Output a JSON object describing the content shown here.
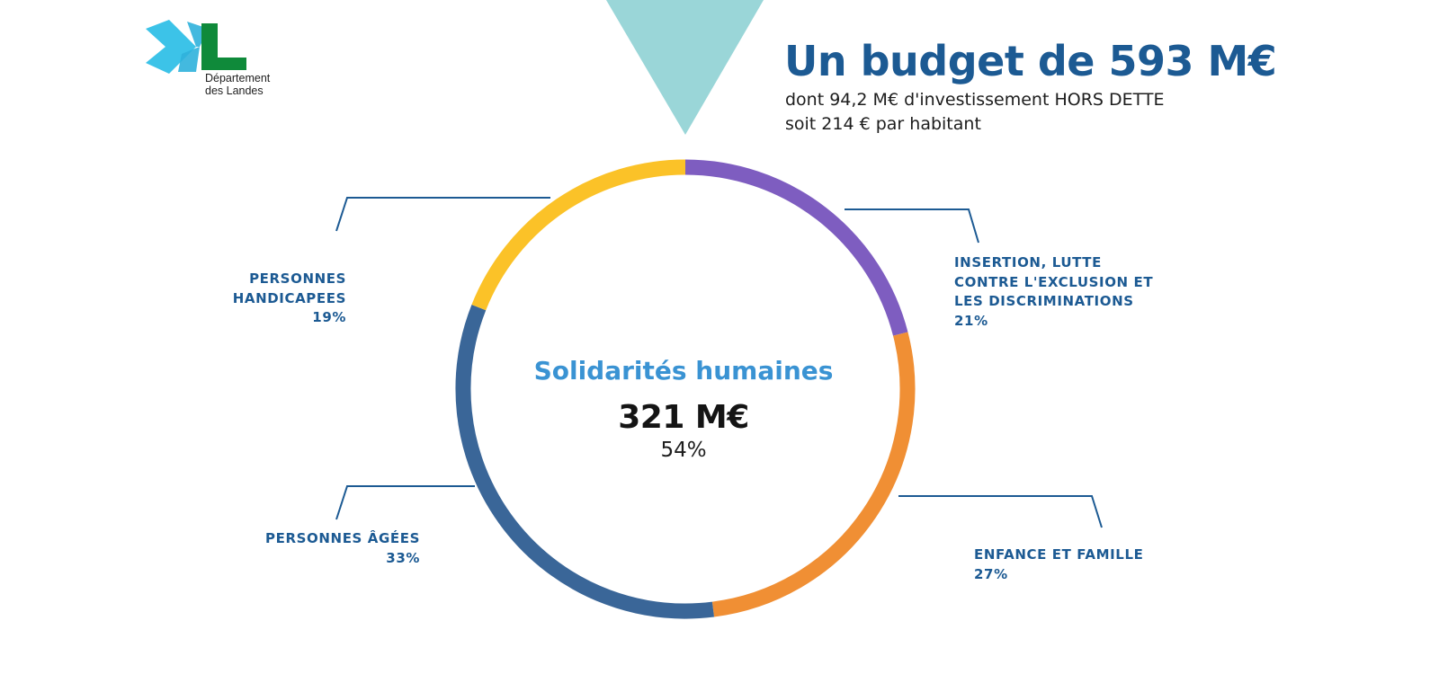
{
  "logo": {
    "line1": "Département",
    "line2": "des Landes",
    "colors": {
      "x": "#3cc3e8",
      "l": "#0f8a3a"
    }
  },
  "header": {
    "title": "Un budget de 593 M€",
    "subtitle_line1": "dont 94,2 M€ d'investissement HORS DETTE",
    "subtitle_line2": "soit 214 € par habitant"
  },
  "accent_triangle_color": "#9ad6d8",
  "chart_data": {
    "type": "pie",
    "style": "donut",
    "center": {
      "title": "Solidarités humaines",
      "value": "321 M€",
      "percent": "54%"
    },
    "slices": [
      {
        "label_lines": [
          "INSERTION, LUTTE",
          "CONTRE L'EXCLUSION ET",
          "LES DISCRIMINATIONS"
        ],
        "percent_label": "21%",
        "value": 21,
        "color": "#7e5dc0"
      },
      {
        "label_lines": [
          "ENFANCE ET FAMILLE"
        ],
        "percent_label": "27%",
        "value": 27,
        "color": "#f08f34"
      },
      {
        "label_lines": [
          "PERSONNES ÂGÉES"
        ],
        "percent_label": "33%",
        "value": 33,
        "color": "#3a6698"
      },
      {
        "label_lines": [
          "PERSONNES",
          "HANDICAPEES"
        ],
        "percent_label": "19%",
        "value": 19,
        "color": "#fbc228"
      }
    ],
    "leader_line_color": "#1c5a93"
  }
}
